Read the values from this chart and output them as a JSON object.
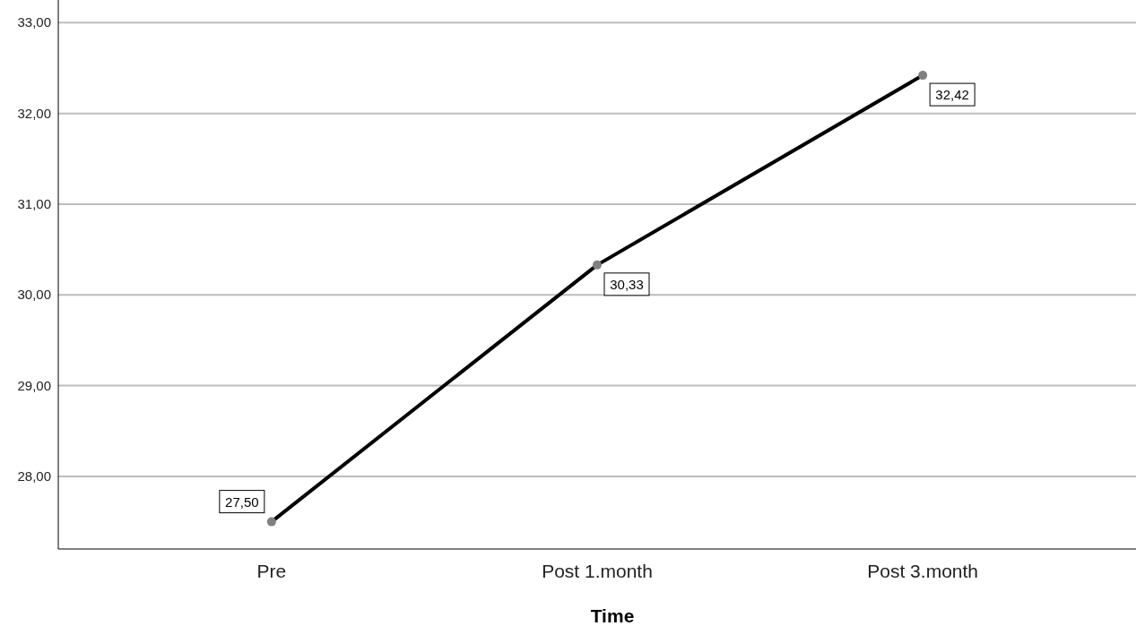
{
  "chart_data": {
    "type": "line",
    "xlabel": "Time",
    "categories": [
      "Pre",
      "Post 1.month",
      "Post 3.month"
    ],
    "series": [
      {
        "color": "#000000",
        "values": [
          27.5,
          30.33,
          32.42
        ],
        "value_labels": [
          "27,50",
          "30,33",
          "32,42"
        ]
      }
    ],
    "ylim": [
      27.2,
      33.25
    ],
    "yticks": [
      {
        "value": 28,
        "label": "28,00"
      },
      {
        "value": 29,
        "label": "29,00"
      },
      {
        "value": 30,
        "label": "30,00"
      },
      {
        "value": 31,
        "label": "31,00"
      },
      {
        "value": 32,
        "label": "32,00"
      },
      {
        "value": 33,
        "label": "33,00"
      }
    ],
    "grid": "y",
    "marker": "circle",
    "line_style": "solid"
  }
}
